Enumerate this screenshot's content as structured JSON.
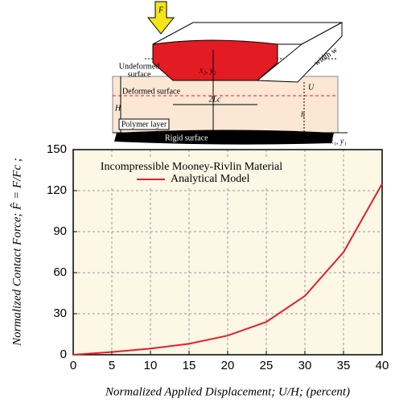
{
  "diagram": {
    "force": "F",
    "undeformed_surface": [
      "Undeformed",
      "surface"
    ],
    "block_axes": "x₂, y₂",
    "width": "width w",
    "deformed_surface": "Deformed surface",
    "u": "U",
    "h_total": "H",
    "contact_length": "2Lc",
    "h_layer": "h",
    "polymer_layer": "Polymer layer",
    "rigid_surface": "Rigid surface",
    "base_axes": "x₁, y₁"
  },
  "chart_data": {
    "type": "line",
    "xlabel": "Normalized Applied Displacement; U/H; (percent)",
    "ylabel": "Normalized Contact Force; F̂ = F/Fc ;",
    "legend_title": "Incompressible Mooney-Rivlin Material",
    "x": [
      0,
      5,
      10,
      15,
      20,
      25,
      30,
      35,
      40
    ],
    "series": [
      {
        "name": "Analytical Model",
        "color": "#e0202a",
        "values": [
          0,
          2,
          4.5,
          8,
          14,
          24,
          43,
          75,
          125
        ]
      }
    ],
    "xlim": [
      0,
      40
    ],
    "xticks": [
      0,
      5,
      10,
      15,
      20,
      25,
      30,
      35,
      40
    ],
    "ylim": [
      0,
      150
    ],
    "yticks": [
      0,
      30,
      60,
      90,
      120,
      150
    ],
    "grid": true
  }
}
